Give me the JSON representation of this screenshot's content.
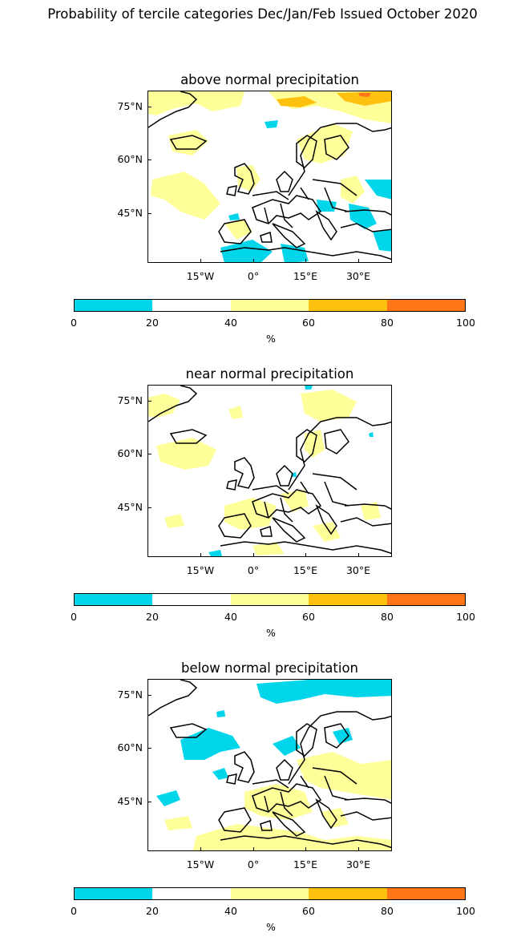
{
  "title": "Probability of tercile categories Dec/Jan/Feb Issued October 2020",
  "panels": [
    {
      "title": "above normal precipitation"
    },
    {
      "title": "near normal precipitation"
    },
    {
      "title": "below normal precipitation"
    }
  ],
  "lat_labels": [
    "75°N",
    "60°N",
    "45°N"
  ],
  "lon_labels": [
    "15°W",
    "0°",
    "15°E",
    "30°E"
  ],
  "colorbar": {
    "ticks": [
      "0",
      "20",
      "40",
      "60",
      "80",
      "100"
    ],
    "unit": "%",
    "colors": [
      "#00d5ea",
      "#ffffff",
      "#ffff99",
      "#ffc10f",
      "#ff7517"
    ]
  }
}
